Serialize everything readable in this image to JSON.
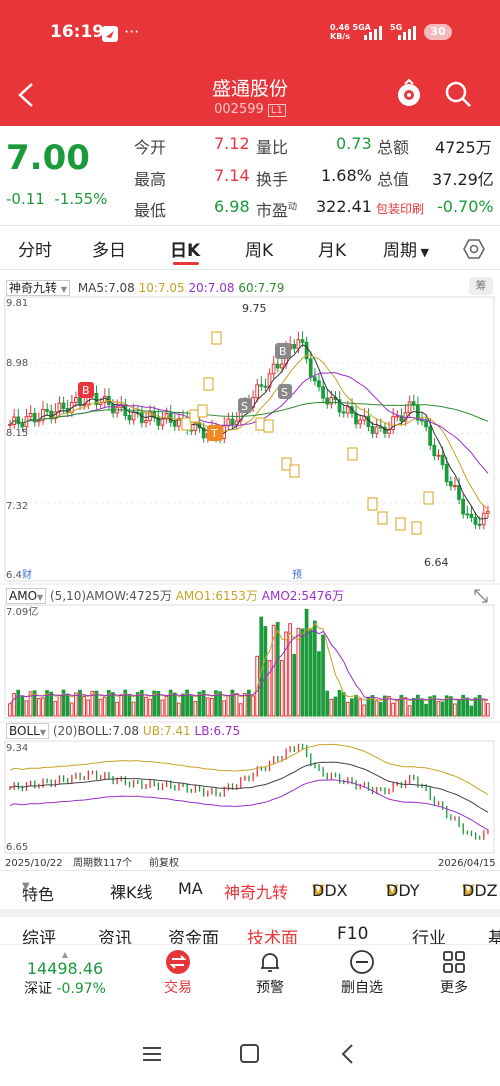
{
  "status": {
    "time": "16:19",
    "net_speed": "0.46",
    "net_unit": "KB/s",
    "net_type1": "5GA",
    "net_type2": "5G",
    "battery": "30"
  },
  "nav": {
    "title": "盛通股份",
    "code": "002599",
    "badge": "L1"
  },
  "quote": {
    "price": "7.00",
    "change": "-0.11",
    "change_pct": "-1.55%",
    "open_label": "今开",
    "open": "7.12",
    "high_label": "最高",
    "high": "7.14",
    "low_label": "最低",
    "low": "6.98",
    "vol_ratio_label": "量比",
    "vol_ratio": "0.73",
    "turnover_label": "换手",
    "turnover": "1.68%",
    "pe_label": "市盈",
    "pe_sup": "动",
    "pe": "322.41",
    "amount_label": "总额",
    "amount": "4725万",
    "mcap_label": "总值",
    "mcap": "37.29亿",
    "sector_label": "包装印刷",
    "sector_pct": "-0.70%"
  },
  "tabs": [
    {
      "label": "分时"
    },
    {
      "label": "多日"
    },
    {
      "label": "日K"
    },
    {
      "label": "周K"
    },
    {
      "label": "月K"
    },
    {
      "label": "周期"
    }
  ],
  "kline": {
    "indicator": "神奇九转",
    "ma5": "MA5:7.08",
    "ma10": "10:7.05",
    "ma20": "20:7.08",
    "ma60": "60:7.79",
    "chip": "筹",
    "y_top": "9.81",
    "y2": "8.98",
    "y3": "8.15",
    "y4": "7.32",
    "y_bottom": "6.4",
    "cai": "财",
    "yu": "预",
    "high_label": "9.75",
    "low_label": "6.64",
    "buy1": "B",
    "buy2": "B",
    "sell1": "S",
    "sell2": "S",
    "t": "T"
  },
  "amo": {
    "label": "AMO",
    "params": "(5,10)",
    "amow": "AMOW:4725万",
    "amo1": "AMO1:6153万",
    "amo2": "AMO2:5476万",
    "y_top": "7.09亿"
  },
  "boll": {
    "label": "BOLL",
    "params": "(20)",
    "boll": "BOLL:7.08",
    "ub": "UB:7.41",
    "lb": "LB:6.75",
    "y_top": "9.34",
    "y_bottom": "6.65",
    "date_start": "2025/10/22",
    "period_count": "周期数117个",
    "adjust": "前复权",
    "date_end": "2026/04/15"
  },
  "bottom_tabs": [
    "特色",
    "裸K线",
    "MA",
    "神奇九转",
    "DDX",
    "DDY",
    "DDZ"
  ],
  "sections": [
    "综评",
    "资讯",
    "资金面",
    "技术面",
    "F10",
    "行业",
    "基"
  ],
  "index": {
    "value": "14498.46",
    "name": "深证",
    "pct": "-0.97%"
  },
  "tabbar": [
    {
      "label": "交易"
    },
    {
      "label": "预警"
    },
    {
      "label": "删自选"
    },
    {
      "label": "更多"
    }
  ],
  "colors": {
    "red": "#e8353a",
    "green": "#1a9a3a",
    "ma5": "#333333",
    "ma10": "#c9a227",
    "ma20": "#9b2fc9",
    "ma60": "#2e8b2e"
  }
}
